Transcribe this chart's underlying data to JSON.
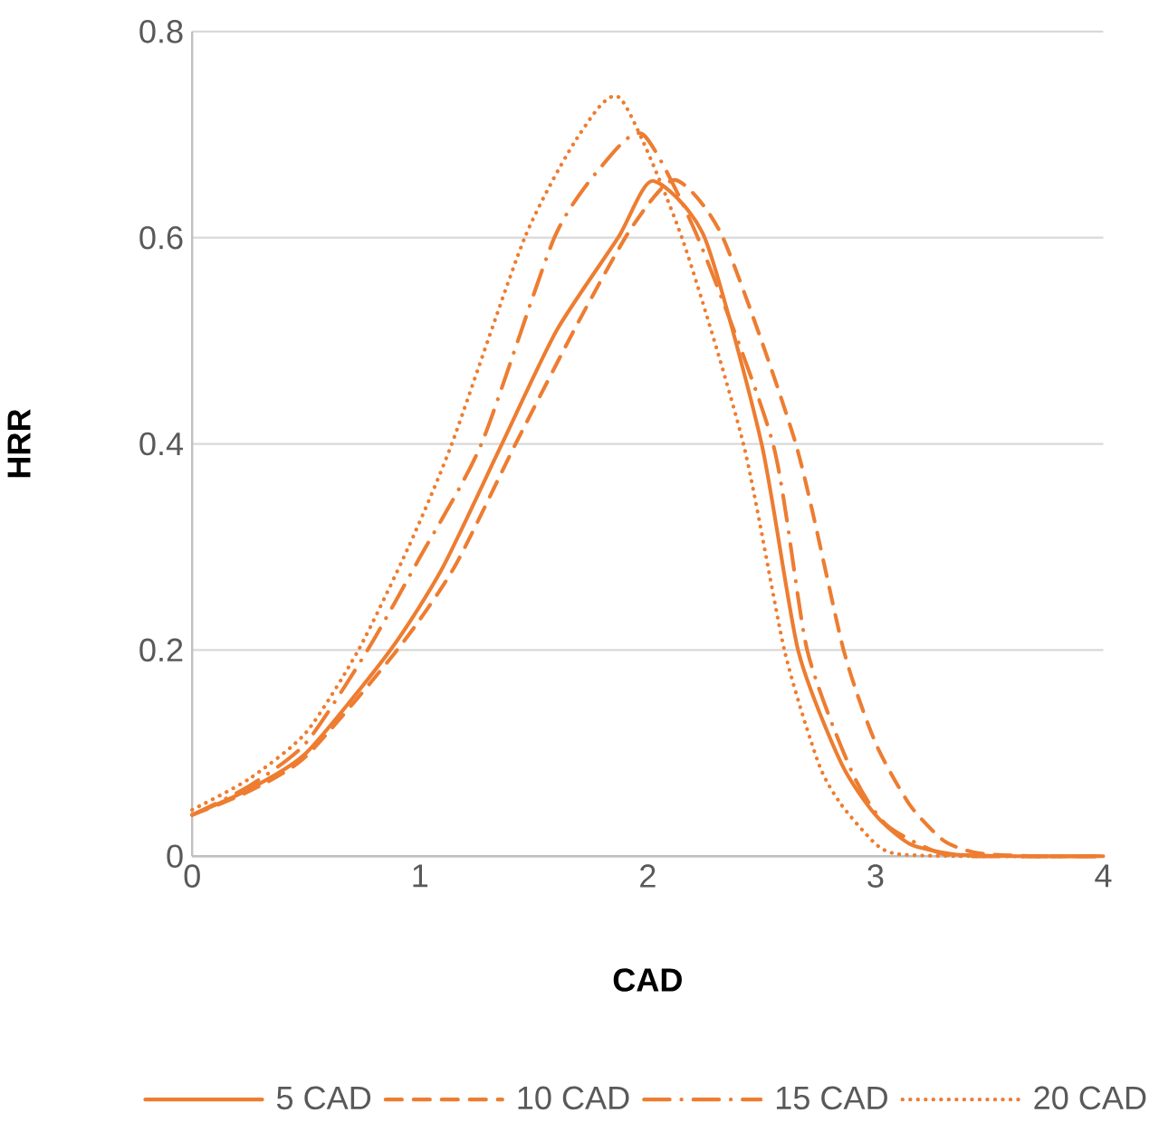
{
  "chart_data": {
    "type": "line",
    "xlabel": "CAD",
    "ylabel": "HRR",
    "xlim": [
      0,
      4
    ],
    "ylim": [
      0,
      0.8
    ],
    "xticks": [
      0,
      1,
      2,
      3,
      4
    ],
    "yticks": [
      0,
      0.2,
      0.4,
      0.6,
      0.8
    ],
    "grid": "y",
    "legend": "bottom",
    "marker": "none",
    "series": [
      {
        "name": "5 CAD",
        "color": "#ed7d31",
        "line_style": "solid",
        "x": [
          0,
          0.25,
          0.5,
          0.87,
          1.1,
          1.36,
          1.6,
          1.87,
          2.02,
          2.25,
          2.5,
          2.66,
          2.85,
          3.0,
          3.15,
          3.34,
          3.6,
          4
        ],
        "values": [
          0.04,
          0.065,
          0.1,
          0.2,
          0.28,
          0.4,
          0.51,
          0.6,
          0.655,
          0.6,
          0.4,
          0.2,
          0.09,
          0.04,
          0.012,
          0.002,
          0,
          0
        ]
      },
      {
        "name": "10 CAD",
        "color": "#ed7d31",
        "line_style": "dashed",
        "x": [
          0,
          0.25,
          0.5,
          0.9,
          1.15,
          1.42,
          1.7,
          1.93,
          2.12,
          2.33,
          2.65,
          2.86,
          3.0,
          3.15,
          3.3,
          3.45,
          3.7,
          4
        ],
        "values": [
          0.04,
          0.063,
          0.097,
          0.2,
          0.28,
          0.4,
          0.52,
          0.61,
          0.656,
          0.6,
          0.4,
          0.2,
          0.11,
          0.05,
          0.015,
          0.003,
          0,
          0
        ]
      },
      {
        "name": "15 CAD",
        "color": "#ed7d31",
        "line_style": "dashdot",
        "x": [
          0,
          0.25,
          0.5,
          0.77,
          1.0,
          1.27,
          1.59,
          1.8,
          1.98,
          2.22,
          2.55,
          2.7,
          2.9,
          3.05,
          3.3,
          3.6,
          4
        ],
        "values": [
          0.04,
          0.068,
          0.11,
          0.2,
          0.29,
          0.4,
          0.6,
          0.67,
          0.7,
          0.6,
          0.4,
          0.2,
          0.08,
          0.03,
          0.002,
          0,
          0
        ]
      },
      {
        "name": "20 CAD",
        "color": "#ed7d31",
        "line_style": "dotted",
        "x": [
          0,
          0.25,
          0.5,
          0.73,
          0.95,
          1.14,
          1.46,
          1.7,
          1.88,
          2.15,
          2.42,
          2.6,
          2.75,
          2.85,
          3.0,
          3.1,
          3.4,
          4
        ],
        "values": [
          0.045,
          0.075,
          0.12,
          0.2,
          0.3,
          0.4,
          0.6,
          0.7,
          0.735,
          0.6,
          0.4,
          0.2,
          0.09,
          0.05,
          0.012,
          0.002,
          0,
          0
        ]
      }
    ]
  }
}
